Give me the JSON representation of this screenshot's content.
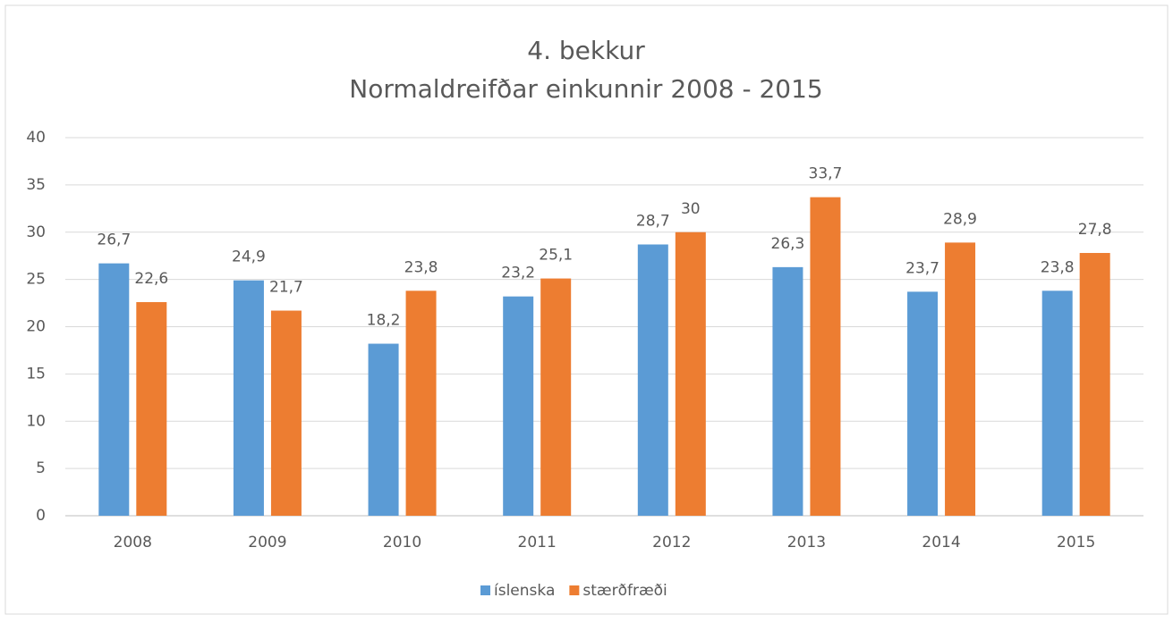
{
  "chart_data": {
    "type": "bar",
    "title": "4. bekkur",
    "subtitle": "Normaldreifðar einkunnir 2008 - 2015",
    "categories": [
      "2008",
      "2009",
      "2010",
      "2011",
      "2012",
      "2013",
      "2014",
      "2015"
    ],
    "series": [
      {
        "name": "íslenska",
        "color": "#5b9bd5",
        "values": [
          26.7,
          24.9,
          18.2,
          23.2,
          28.7,
          26.3,
          23.7,
          23.8
        ],
        "value_labels": [
          "26,7",
          "24,9",
          "18,2",
          "23,2",
          "28,7",
          "26,3",
          "23,7",
          "23,8"
        ]
      },
      {
        "name": "stærðfræði",
        "color": "#ed7d31",
        "values": [
          22.6,
          21.7,
          23.8,
          25.1,
          30,
          33.7,
          28.9,
          27.8
        ],
        "value_labels": [
          "22,6",
          "21,7",
          "23,8",
          "25,1",
          "30",
          "33,7",
          "28,9",
          "27,8"
        ]
      }
    ],
    "ylim": [
      0,
      40
    ],
    "yticks": [
      0,
      5,
      10,
      15,
      20,
      25,
      30,
      35,
      40
    ],
    "grid": true,
    "legend": "bottom"
  }
}
